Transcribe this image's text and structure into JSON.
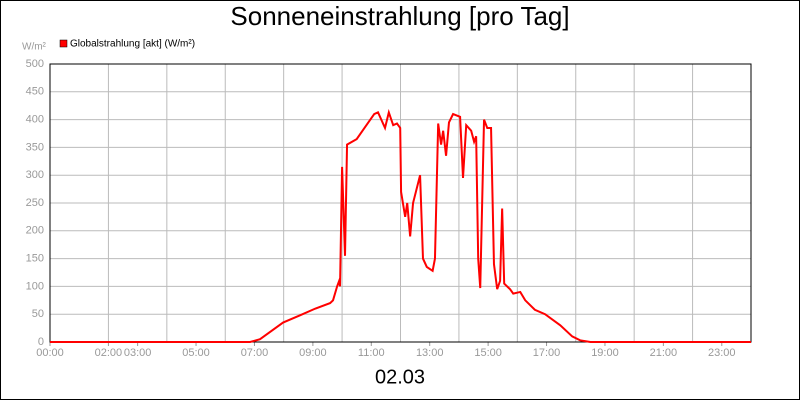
{
  "chart_data": {
    "type": "line",
    "title": "Sonneneinstrahlung [pro Tag]",
    "ylabel": "W/m²",
    "xlabel": "02.03",
    "xlim": [
      0,
      24
    ],
    "ylim": [
      0,
      500
    ],
    "yticks": [
      0,
      50,
      100,
      150,
      200,
      250,
      300,
      350,
      400,
      450,
      500
    ],
    "xticks": [
      {
        "value": 0,
        "label": "00:00"
      },
      {
        "value": 2,
        "label": "02:00"
      },
      {
        "value": 3,
        "label": "03:00"
      },
      {
        "value": 5,
        "label": "05:00"
      },
      {
        "value": 7,
        "label": "07:00"
      },
      {
        "value": 9,
        "label": "09:00"
      },
      {
        "value": 11,
        "label": "11:00"
      },
      {
        "value": 13,
        "label": "13:00"
      },
      {
        "value": 15,
        "label": "15:00"
      },
      {
        "value": 17,
        "label": "17:00"
      },
      {
        "value": 19,
        "label": "19:00"
      },
      {
        "value": 21,
        "label": "21:00"
      },
      {
        "value": 23,
        "label": "23:00"
      }
    ],
    "xgrid": [
      0,
      2,
      4,
      6,
      8,
      10,
      12,
      14,
      16,
      18,
      20,
      22,
      24
    ],
    "grid": true,
    "series": [
      {
        "name": "Globalstrahlung [akt] (W/m²)",
        "color": "#ff0000",
        "x": [
          0,
          6.85,
          7.19,
          7.98,
          8.56,
          9.08,
          9.59,
          9.69,
          9.83,
          9.9,
          9.93,
          10.0,
          10.1,
          10.17,
          10.5,
          11.1,
          11.23,
          11.47,
          11.6,
          11.75,
          11.88,
          11.99,
          12.02,
          12.16,
          12.23,
          12.33,
          12.43,
          12.67,
          12.77,
          12.9,
          13.1,
          13.18,
          13.29,
          13.39,
          13.46,
          13.56,
          13.66,
          13.8,
          14.04,
          14.14,
          14.25,
          14.42,
          14.52,
          14.59,
          14.66,
          14.73,
          14.86,
          14.97,
          15.1,
          15.2,
          15.31,
          15.41,
          15.48,
          15.55,
          15.75,
          15.86,
          16.1,
          16.27,
          16.6,
          16.95,
          17.47,
          17.88,
          18.15,
          18.5,
          24
        ],
        "values": [
          0,
          0,
          5,
          35,
          48,
          60,
          70,
          75,
          100,
          110,
          100,
          315,
          155,
          355,
          365,
          410,
          413,
          385,
          413,
          390,
          393,
          385,
          270,
          225,
          250,
          190,
          250,
          300,
          150,
          135,
          128,
          150,
          393,
          355,
          380,
          335,
          395,
          410,
          405,
          295,
          390,
          380,
          360,
          370,
          150,
          97,
          400,
          385,
          385,
          140,
          95,
          110,
          240,
          105,
          95,
          87,
          90,
          75,
          58,
          50,
          30,
          10,
          3,
          0,
          0
        ]
      }
    ]
  }
}
